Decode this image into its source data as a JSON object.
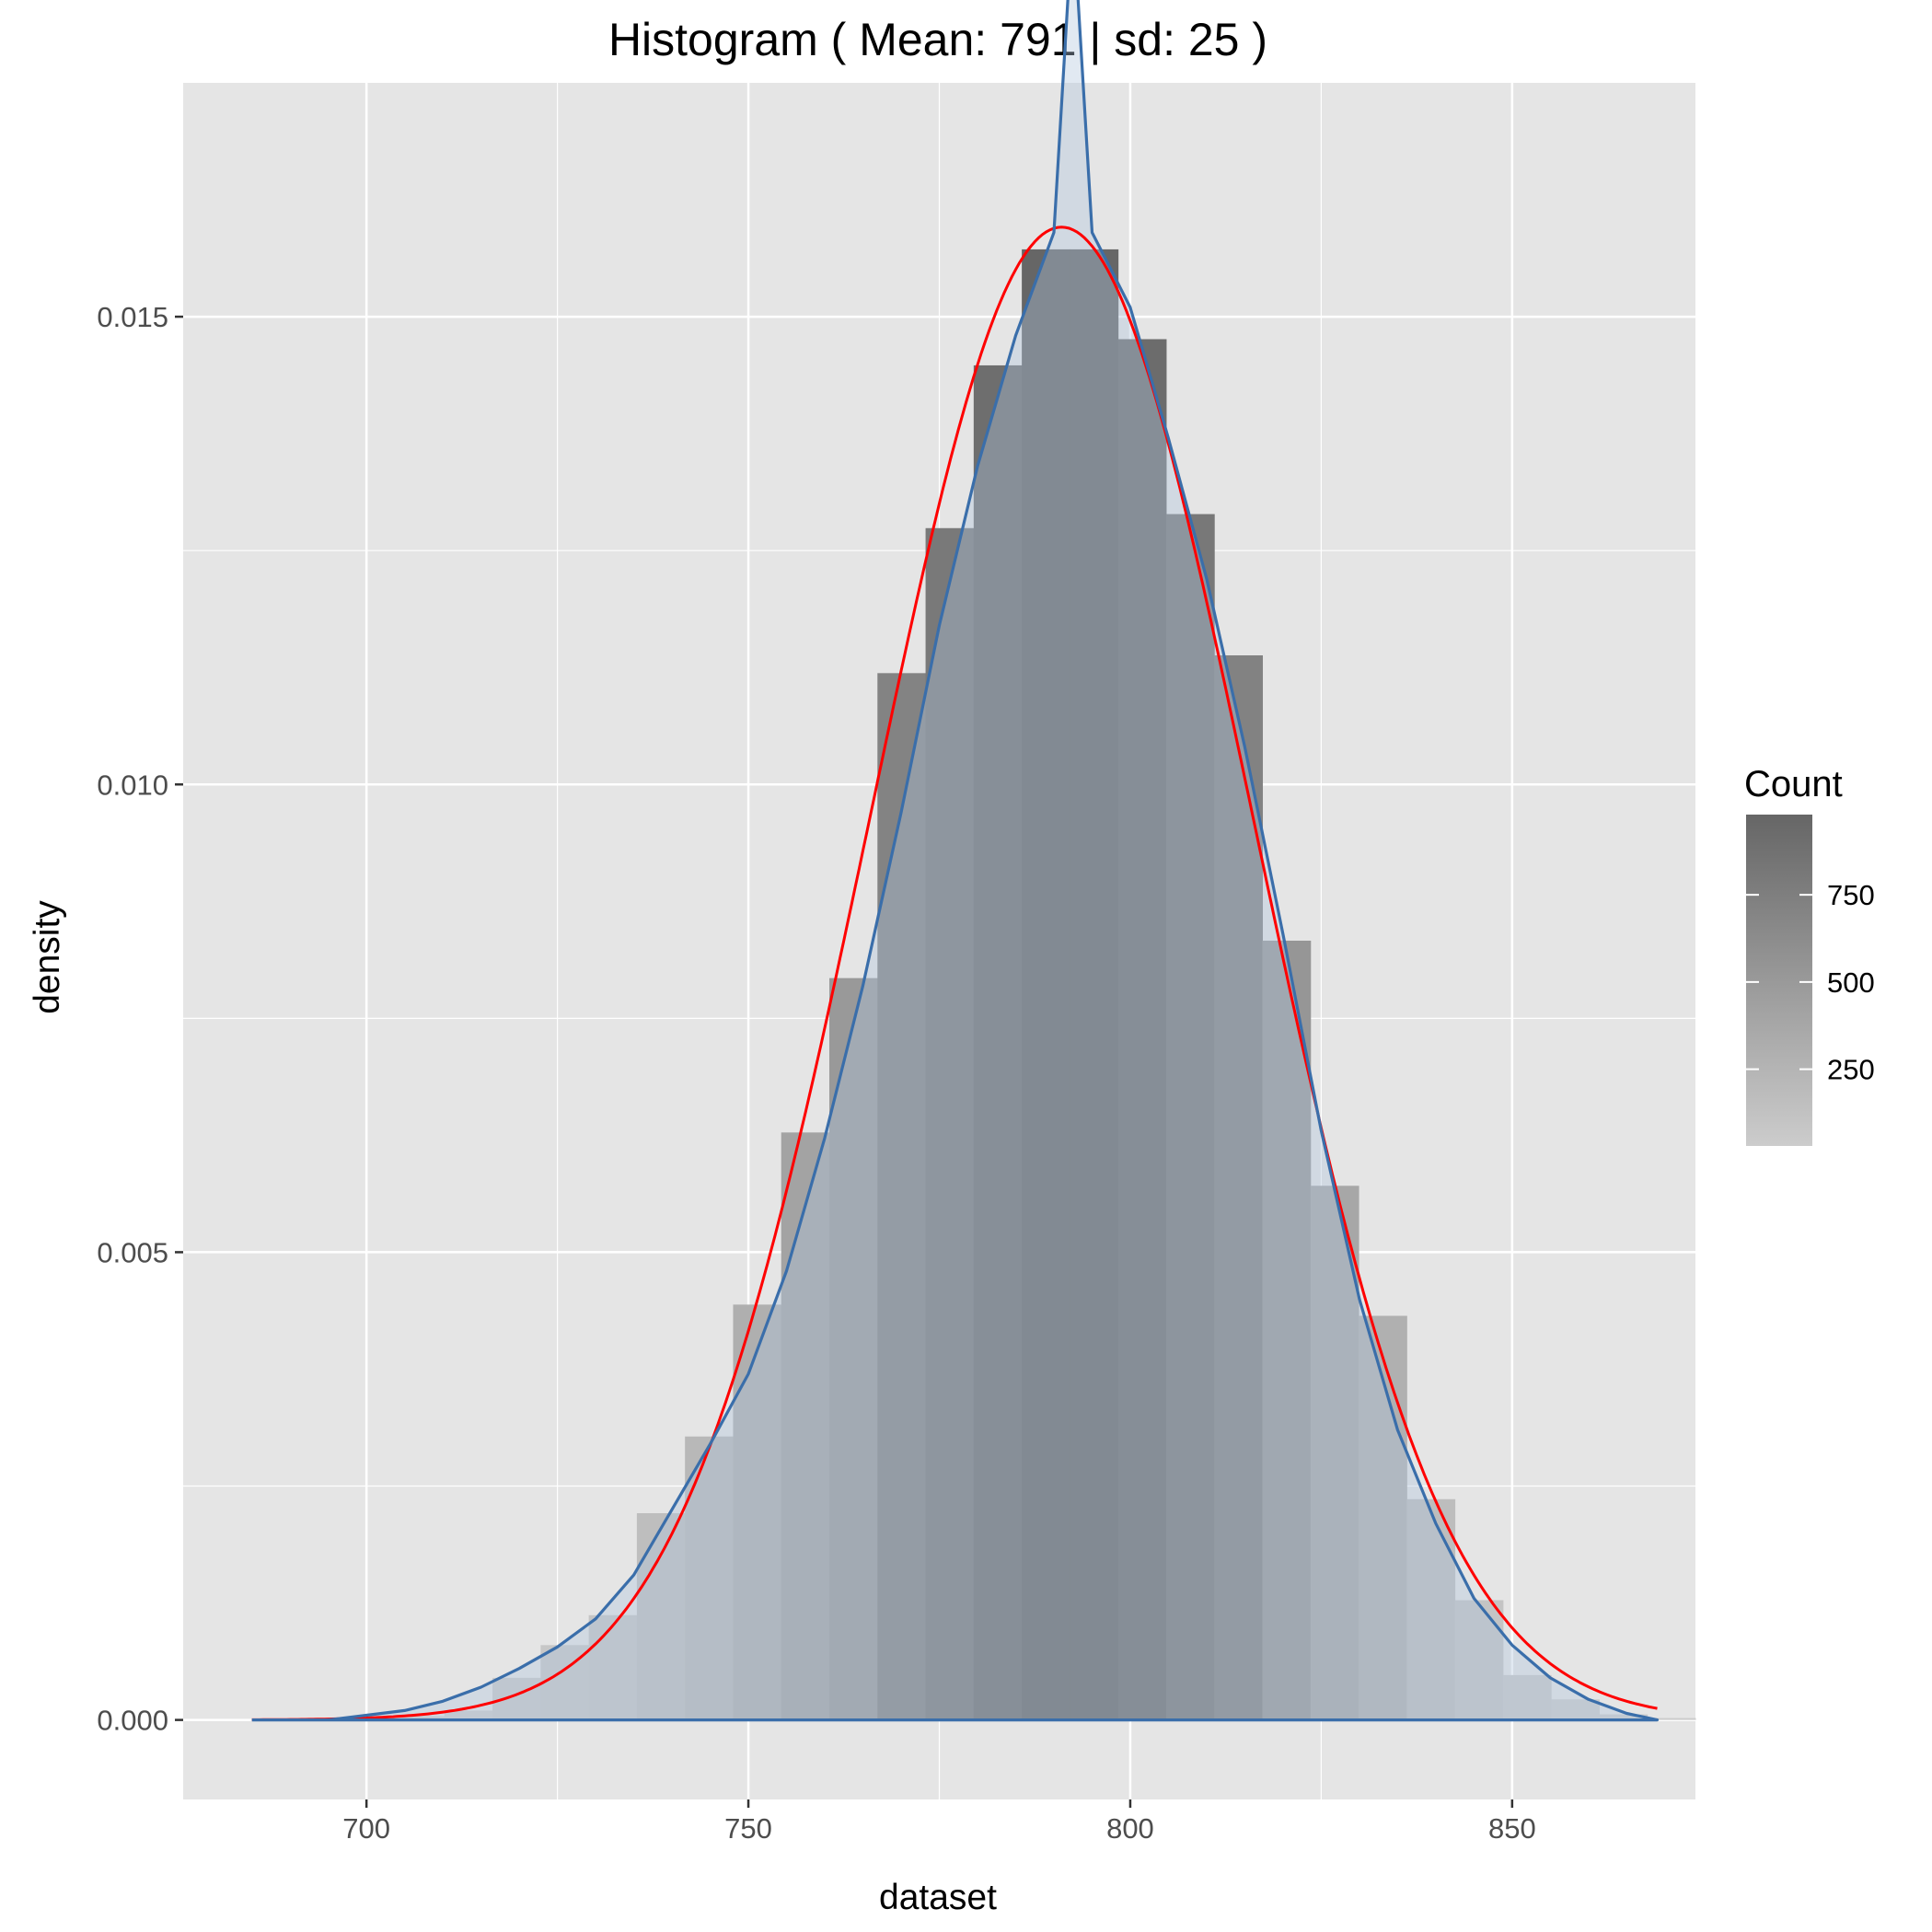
{
  "chart_data": {
    "type": "bar",
    "title": "Histogram ( Mean: 791 | sd: 25 )",
    "xlabel": "dataset",
    "ylabel": "density",
    "xlim": [
      676,
      874
    ],
    "ylim": [
      -0.00085,
      0.0175
    ],
    "x_ticks": [
      700,
      750,
      800,
      850
    ],
    "x_tick_labels": [
      "700",
      "750",
      "800",
      "850"
    ],
    "y_ticks": [
      0.0,
      0.005,
      0.01,
      0.015
    ],
    "y_tick_labels": [
      "0.000",
      "0.005",
      "0.010",
      "0.015"
    ],
    "grid": true,
    "bins": [
      {
        "x0": 685.0,
        "x1": 691.3,
        "density": 1e-05
      },
      {
        "x0": 691.3,
        "x1": 697.6,
        "density": 1e-05
      },
      {
        "x0": 697.6,
        "x1": 703.9,
        "density": 2e-05
      },
      {
        "x0": 703.9,
        "x1": 710.2,
        "density": 4e-05
      },
      {
        "x0": 710.2,
        "x1": 716.5,
        "density": 0.0001
      },
      {
        "x0": 716.5,
        "x1": 722.8,
        "density": 0.00045
      },
      {
        "x0": 722.8,
        "x1": 729.1,
        "density": 0.0008
      },
      {
        "x0": 729.1,
        "x1": 735.4,
        "density": 0.00112
      },
      {
        "x0": 735.4,
        "x1": 741.7,
        "density": 0.00221
      },
      {
        "x0": 741.7,
        "x1": 748.0,
        "density": 0.00303
      },
      {
        "x0": 748.0,
        "x1": 754.3,
        "density": 0.00444
      },
      {
        "x0": 754.3,
        "x1": 760.6,
        "density": 0.00628
      },
      {
        "x0": 760.6,
        "x1": 766.9,
        "density": 0.00793
      },
      {
        "x0": 766.9,
        "x1": 773.2,
        "density": 0.01119
      },
      {
        "x0": 773.2,
        "x1": 779.5,
        "density": 0.01274
      },
      {
        "x0": 779.5,
        "x1": 785.8,
        "density": 0.01448
      },
      {
        "x0": 785.8,
        "x1": 792.1,
        "density": 0.01572
      },
      {
        "x0": 792.1,
        "x1": 798.4,
        "density": 0.01572
      },
      {
        "x0": 798.4,
        "x1": 804.7,
        "density": 0.01476
      },
      {
        "x0": 804.7,
        "x1": 811.0,
        "density": 0.01289
      },
      {
        "x0": 811.0,
        "x1": 817.3,
        "density": 0.01138
      },
      {
        "x0": 817.3,
        "x1": 823.6,
        "density": 0.00833
      },
      {
        "x0": 823.6,
        "x1": 829.9,
        "density": 0.00571
      },
      {
        "x0": 829.9,
        "x1": 836.2,
        "density": 0.00432
      },
      {
        "x0": 836.2,
        "x1": 842.5,
        "density": 0.00236
      },
      {
        "x0": 842.5,
        "x1": 848.8,
        "density": 0.00128
      },
      {
        "x0": 848.8,
        "x1": 855.1,
        "density": 0.00048
      },
      {
        "x0": 855.1,
        "x1": 861.4,
        "density": 0.00022
      },
      {
        "x0": 861.4,
        "x1": 867.7,
        "density": 6e-05
      },
      {
        "x0": 867.7,
        "x1": 874.0,
        "density": 2e-05
      }
    ],
    "bar_gradient": {
      "low_color": "#cccccc",
      "high_color": "#666666"
    },
    "overlay_color": "#b0c4de",
    "normal_curve": {
      "color": "#ff0000",
      "mean": 791,
      "sd": 25,
      "x_range": [
        685,
        869
      ]
    },
    "density_curve": {
      "color": "#3a6eaa",
      "points": [
        [
          685,
          0.0
        ],
        [
          695,
          0.0
        ],
        [
          700,
          5e-05
        ],
        [
          705,
          0.0001
        ],
        [
          710,
          0.0002
        ],
        [
          715,
          0.00035
        ],
        [
          720,
          0.00055
        ],
        [
          725,
          0.00078
        ],
        [
          730,
          0.00108
        ],
        [
          735,
          0.00155
        ],
        [
          740,
          0.00225
        ],
        [
          745,
          0.00295
        ],
        [
          750,
          0.0037
        ],
        [
          755,
          0.0048
        ],
        [
          760,
          0.00622
        ],
        [
          765,
          0.00785
        ],
        [
          770,
          0.0097
        ],
        [
          775,
          0.0117
        ],
        [
          780,
          0.0134
        ],
        [
          785,
          0.0148
        ],
        [
          790,
          0.0159
        ],
        [
          792.5,
          0.0193
        ],
        [
          795,
          0.0159
        ],
        [
          800,
          0.0151
        ],
        [
          805,
          0.0137
        ],
        [
          810,
          0.0122
        ],
        [
          815,
          0.0104
        ],
        [
          820,
          0.0084
        ],
        [
          825,
          0.0063
        ],
        [
          830,
          0.0045
        ],
        [
          835,
          0.0031
        ],
        [
          840,
          0.0021
        ],
        [
          845,
          0.0013
        ],
        [
          850,
          0.0008
        ],
        [
          855,
          0.00045
        ],
        [
          860,
          0.00022
        ],
        [
          865,
          7e-05
        ],
        [
          869,
          0.0
        ],
        [
          685,
          0.0
        ]
      ]
    },
    "legend": {
      "title": "Count",
      "position": "right",
      "breaks": [
        250,
        500,
        750
      ],
      "break_labels": [
        "250",
        "500",
        "750"
      ],
      "range": [
        30,
        980
      ],
      "low_color": "#cccccc",
      "high_color": "#666666"
    }
  }
}
